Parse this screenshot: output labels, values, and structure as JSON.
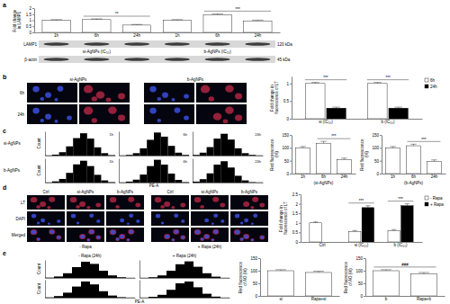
{
  "panel_labels": [
    "a",
    "b",
    "c",
    "d",
    "e"
  ],
  "blot": {
    "rows": [
      {
        "label": "LAMP1",
        "size": "120 kDa"
      },
      {
        "label": "β-actin",
        "size": "45 kDa"
      }
    ],
    "groups": [
      "si-AgNPs (IC₅₀)",
      "b-AgNPs (IC₅₀)"
    ]
  },
  "micrographs_b": {
    "columns": [
      "si-AgNPs",
      "b-AgNPs"
    ],
    "rows": [
      "6h",
      "24h"
    ]
  },
  "micrographs_d": {
    "columns": [
      "Ctrl",
      "si-AgNPs",
      "b-AgNPs"
    ],
    "rows": [
      "LT",
      "DAPI",
      "Merged"
    ],
    "groups": [
      "- Rapa",
      "+ Rapa (24h)"
    ]
  },
  "flow_c": {
    "y_label": "Count",
    "x_label": "PE-A",
    "rows": [
      "si-AgNPs",
      "b-AgNPs"
    ]
  },
  "flow_e": {
    "y_label": "Count",
    "x_label": "PE-A",
    "columns": [
      "- Rapa (24h)",
      "+ Rapa (24h)"
    ]
  },
  "chart_data": [
    {
      "type": "bar",
      "y_label": "Fold change in LAMP1",
      "categories": [
        "1h",
        "6h",
        "24h",
        "1h",
        "6h",
        "24h"
      ],
      "values": [
        1.0,
        1.05,
        0.6,
        1.0,
        1.45,
        0.95
      ],
      "errors": [
        0.05,
        0.06,
        0.05,
        0.05,
        0.08,
        0.06
      ],
      "color": "#ffffff",
      "ylim": [
        0,
        2
      ],
      "yticks": [
        0,
        0.5,
        1,
        1.5,
        2
      ],
      "annotations": [
        {
          "text": "**",
          "from": 1,
          "to": 2
        },
        {
          "text": "***",
          "from": 4,
          "to": 5
        }
      ]
    },
    {
      "type": "bar",
      "y_label": "Fold change in fluorescence of LT",
      "categories": [
        "si (IC₅₀)",
        "b (IC₅₀)"
      ],
      "series": [
        {
          "name": "6h",
          "color": "#ffffff",
          "values": [
            1.0,
            1.0
          ],
          "errors": [
            0.03,
            0.03
          ]
        },
        {
          "name": "24h",
          "color": "#000000",
          "values": [
            0.3,
            0.3
          ],
          "errors": [
            0.03,
            0.03
          ]
        }
      ],
      "ylim": [
        0,
        1.2
      ],
      "yticks": [
        0,
        0.5,
        1
      ],
      "legend": "right",
      "annotations": [
        {
          "text": "***",
          "from": 0,
          "to": 0
        },
        {
          "text": "***",
          "from": 1,
          "to": 1
        }
      ]
    },
    {
      "type": "bar",
      "y_label": "Red fluorescence (%)",
      "x_label": "(si-AgNPs)",
      "categories": [
        "1h",
        "6h",
        "24h"
      ],
      "values": [
        100,
        118,
        55
      ],
      "errors": [
        5,
        7,
        5
      ],
      "color": "#ffffff",
      "ylim": [
        0,
        150
      ],
      "yticks": [
        0,
        50,
        100,
        150
      ],
      "annotations": [
        {
          "text": "***",
          "from": 1,
          "to": 2
        }
      ]
    },
    {
      "type": "bar",
      "y_label": "Red fluorescence (%)",
      "x_label": "(b-AgNPs)",
      "categories": [
        "1h",
        "6h",
        "24h"
      ],
      "values": [
        100,
        108,
        48
      ],
      "errors": [
        5,
        6,
        5
      ],
      "color": "#ffffff",
      "ylim": [
        0,
        150
      ],
      "yticks": [
        0,
        50,
        100,
        150
      ],
      "annotations": [
        {
          "text": "***",
          "from": 1,
          "to": 2
        }
      ]
    },
    {
      "type": "bar",
      "y_label": "Fold change in fluorescence of LT",
      "categories": [
        "Ctrl",
        "si (IC₅₀)",
        "b (IC₅₀)"
      ],
      "series": [
        {
          "name": "- Rapa",
          "color": "#ffffff",
          "values": [
            1.0,
            0.55,
            0.6
          ],
          "errors": [
            0.05,
            0.05,
            0.05
          ]
        },
        {
          "name": "+ Rapa",
          "color": "#000000",
          "values": [
            null,
            1.8,
            1.9
          ],
          "errors": [
            null,
            0.1,
            0.1
          ]
        }
      ],
      "ylim": [
        0,
        2.5
      ],
      "yticks": [
        0,
        0.5,
        1,
        1.5,
        2,
        2.5
      ],
      "legend": "right",
      "annotations": [
        {
          "text": "***",
          "from": 1,
          "to": 1
        },
        {
          "text": "***",
          "from": 2,
          "to": 2
        }
      ]
    },
    {
      "type": "bar",
      "y_label": "Red fluorescence of AO (%)",
      "categories": [
        "si",
        "Rapa+si"
      ],
      "values": [
        100,
        93
      ],
      "errors": [
        4,
        5
      ],
      "color": "#ffffff",
      "ylim": [
        0,
        150
      ],
      "yticks": [
        0,
        50,
        100,
        150
      ]
    },
    {
      "type": "bar",
      "y_label": "Red fluorescence of AO (%)",
      "categories": [
        "b",
        "Rapa+b"
      ],
      "values": [
        100,
        88
      ],
      "errors": [
        4,
        5
      ],
      "color": "#ffffff",
      "ylim": [
        0,
        150
      ],
      "yticks": [
        0,
        50,
        100,
        150
      ],
      "annotations": [
        {
          "text": "###",
          "from": 0,
          "to": 1
        }
      ]
    },
    {
      "type": "histogram",
      "title": "1h",
      "bins": [
        0,
        1,
        2,
        3,
        4,
        5,
        6,
        7,
        8,
        9,
        10
      ],
      "counts": [
        1,
        4,
        14,
        38,
        72,
        92,
        70,
        34,
        10,
        2
      ],
      "xlim": [
        0,
        10
      ],
      "ylim": [
        0,
        100
      ],
      "tick_labels": false
    },
    {
      "type": "histogram",
      "title": "6h",
      "bins": [
        0,
        1,
        2,
        3,
        4,
        5,
        6,
        7,
        8,
        9,
        10
      ],
      "counts": [
        1,
        3,
        10,
        30,
        65,
        95,
        78,
        40,
        12,
        3
      ],
      "xlim": [
        0,
        10
      ],
      "ylim": [
        0,
        100
      ],
      "tick_labels": false
    },
    {
      "type": "histogram",
      "title": "24h",
      "bins": [
        0,
        1,
        2,
        3,
        4,
        5,
        6,
        7,
        8,
        9,
        10
      ],
      "counts": [
        3,
        12,
        35,
        70,
        90,
        66,
        30,
        10,
        3,
        1
      ],
      "xlim": [
        0,
        10
      ],
      "ylim": [
        0,
        100
      ],
      "tick_labels": false
    },
    {
      "type": "histogram",
      "title": "1h",
      "bins": [
        0,
        1,
        2,
        3,
        4,
        5,
        6,
        7,
        8,
        9,
        10
      ],
      "counts": [
        1,
        5,
        15,
        40,
        75,
        90,
        68,
        32,
        9,
        2
      ],
      "xlim": [
        0,
        10
      ],
      "ylim": [
        0,
        100
      ],
      "tick_labels": false
    },
    {
      "type": "histogram",
      "title": "6h",
      "bins": [
        0,
        1,
        2,
        3,
        4,
        5,
        6,
        7,
        8,
        9,
        10
      ],
      "counts": [
        1,
        4,
        12,
        33,
        68,
        94,
        74,
        37,
        11,
        2
      ],
      "xlim": [
        0,
        10
      ],
      "ylim": [
        0,
        100
      ],
      "tick_labels": false
    },
    {
      "type": "histogram",
      "title": "24h",
      "bins": [
        0,
        1,
        2,
        3,
        4,
        5,
        6,
        7,
        8,
        9,
        10
      ],
      "counts": [
        4,
        14,
        38,
        74,
        88,
        62,
        28,
        9,
        2,
        1
      ],
      "xlim": [
        0,
        10
      ],
      "ylim": [
        0,
        100
      ],
      "tick_labels": false
    },
    {
      "type": "histogram",
      "bins": [
        0,
        1,
        2,
        3,
        4,
        5,
        6,
        7,
        8,
        9,
        10
      ],
      "counts": [
        2,
        8,
        26,
        60,
        90,
        78,
        40,
        14,
        4,
        1
      ],
      "xlim": [
        0,
        10
      ],
      "ylim": [
        0,
        100
      ],
      "tick_labels": false
    },
    {
      "type": "histogram",
      "bins": [
        0,
        1,
        2,
        3,
        4,
        5,
        6,
        7,
        8,
        9,
        10
      ],
      "counts": [
        1,
        4,
        14,
        40,
        76,
        92,
        62,
        26,
        7,
        1
      ],
      "xlim": [
        0,
        10
      ],
      "ylim": [
        0,
        100
      ],
      "tick_labels": false
    },
    {
      "type": "histogram",
      "bins": [
        0,
        1,
        2,
        3,
        4,
        5,
        6,
        7,
        8,
        9,
        10
      ],
      "counts": [
        2,
        9,
        28,
        62,
        90,
        74,
        36,
        12,
        3,
        1
      ],
      "xlim": [
        0,
        10
      ],
      "ylim": [
        0,
        100
      ],
      "tick_labels": false
    },
    {
      "type": "histogram",
      "bins": [
        0,
        1,
        2,
        3,
        4,
        5,
        6,
        7,
        8,
        9,
        10
      ],
      "counts": [
        1,
        5,
        16,
        44,
        80,
        90,
        58,
        22,
        6,
        1
      ],
      "xlim": [
        0,
        10
      ],
      "ylim": [
        0,
        100
      ],
      "tick_labels": false
    }
  ]
}
